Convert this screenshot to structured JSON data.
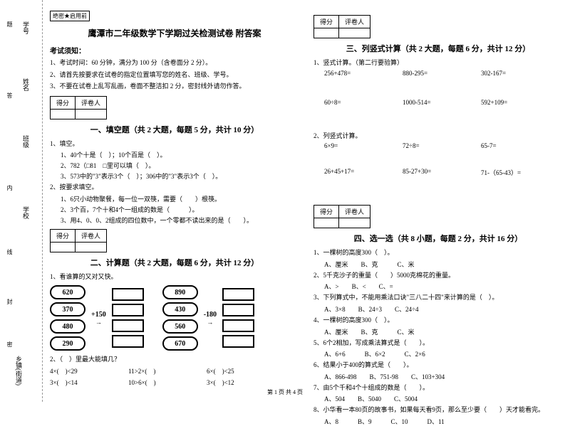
{
  "binding": {
    "labels": [
      "学号",
      "姓名",
      "班级",
      "学校",
      "乡镇(街道)"
    ],
    "vert": [
      "题",
      "答",
      "内",
      "线",
      "封",
      "密"
    ],
    "side_hint": [
      "不",
      "准",
      "要"
    ]
  },
  "header": {
    "secret": "绝密★启用前",
    "title": "鹰潭市二年级数学下学期过关检测试卷 附答案",
    "notice_title": "考试须知：",
    "notices": [
      "1、考试时间：60 分钟，满分为 100 分（含卷面分 2 分）。",
      "2、请首先按要求在试卷的指定位置填写您的姓名、班级、学号。",
      "3、不要在试卷上乱写乱画，卷面不整洁扣 2 分，密封线外请勿作答。"
    ]
  },
  "score_table": {
    "c1": "得分",
    "c2": "评卷人"
  },
  "sections": {
    "s1": {
      "title": "一、填空题（共 2 大题，每题 5 分，共计 10 分）",
      "q1": "1、填空。",
      "q1_items": [
        "1、40个十是（　）；10个百是（　）。",
        "2、782（□81　□里可以填（　）。",
        "3、573中的\"3\"表示3个（　）；306中的\"3\"表示3个（　）。"
      ],
      "q2": "2、按要求填空。",
      "q2_items": [
        "1、6只小动物聚餐，每一位一双筷，需要（　　）根筷。",
        "2、3个百，7个十和4个一组成的数是（　　　）。",
        "3、用4、0、0、2组成的四位数中，一个零都不读出来的是（　　）。"
      ]
    },
    "s2": {
      "title": "二、计算题（共 2 大题，每题 6 分，共计 12 分）",
      "q1": "1、看谁算的又对又快。",
      "diagram": {
        "left_op": "+150",
        "right_op": "-180",
        "left_vals": [
          "620",
          "370",
          "480",
          "290"
        ],
        "right_vals": [
          "890",
          "430",
          "560",
          "670"
        ]
      },
      "q2": "2、（　）里最大能填几？",
      "q2_rows": [
        [
          "4×(　)<29",
          "11>2×(　)",
          "6×(　)<25"
        ],
        [
          "3×(　)<14",
          "10>6×(　)",
          "3×(　)<12"
        ]
      ]
    },
    "s3": {
      "title": "三、列竖式计算（共 2 大题，每题 6 分，共计 12 分）",
      "q1": "1、竖式计算。（第二行要验算）",
      "q1_rows": [
        [
          "256+478=",
          "880-295=",
          "302-167="
        ],
        [
          "60÷8=",
          "1000-514=",
          "592+109="
        ]
      ],
      "q2": "2、列竖式计算。",
      "q2_rows": [
        [
          "6×9=",
          "72÷8=",
          "65-7="
        ],
        [
          "26+45+17=",
          "85-27+30=",
          "71-（65-43）="
        ]
      ]
    },
    "s4": {
      "title": "四、选一选（共 8 小题，每题 2 分，共计 16 分）",
      "items": [
        {
          "q": "1、一棵树的高度300（　）。",
          "opts": "A、厘米　　B、克　　　C、米"
        },
        {
          "q": "2、5千克沙子的重量（　　）5000克棉花的重量。",
          "opts": "A、>　　B、<　　C、="
        },
        {
          "q": "3、下列算式中，不能用乘法口诀\"三八二十四\"来计算的是（　）。",
          "opts": "A、3×8　　B、24÷3　　C、24÷4"
        },
        {
          "q": "4、一棵树的高度300（　）。",
          "opts": "A、厘米　　B、克　　　C、米"
        },
        {
          "q": "5、6个2相加，写成乘法算式是（　　）。",
          "opts": "A、6+6　　　B、6×2　　　C、2×6"
        },
        {
          "q": "6、结果小于400的算式是（　　）。",
          "opts": "A、866-498　　B、751-98　　C、103+304"
        },
        {
          "q": "7、由5个千和4个十组成的数是（　　）。",
          "opts": "A、504　　B、5040　　C、5004"
        },
        {
          "q": "8、小华看一本80页的故事书，如果每天看9页，那么至少要（　　）天才能看完。",
          "opts": "A、8　　　B、9　　　C、10　　　D、11"
        }
      ]
    }
  },
  "footer": "第 1 页 共 4 页"
}
